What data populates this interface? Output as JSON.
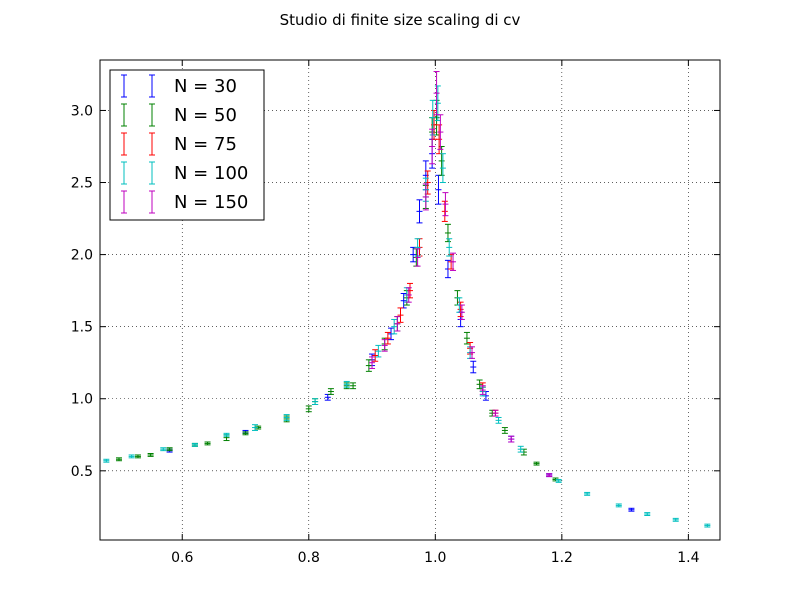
{
  "chart_data": {
    "type": "scatter",
    "title": "Studio di finite size scaling di cv",
    "xlabel": "",
    "ylabel": "",
    "xlim": [
      0.47,
      1.45
    ],
    "ylim": [
      0.02,
      3.35
    ],
    "x_ticks": [
      0.6,
      0.8,
      1.0,
      1.2,
      1.4
    ],
    "x_tick_labels": [
      "0.6",
      "0.8",
      "1.0",
      "1.2",
      "1.4"
    ],
    "y_ticks": [
      0.5,
      1.0,
      1.5,
      2.0,
      2.5,
      3.0
    ],
    "y_tick_labels": [
      "0.5",
      "1.0",
      "1.5",
      "2.0",
      "2.5",
      "3.0"
    ],
    "grid": true,
    "legend_position": "top-left",
    "series": [
      {
        "name": "N = 30",
        "color": "#0000ff",
        "points": [
          [
            0.58,
            0.64,
            0.01
          ],
          [
            0.7,
            0.77,
            0.01
          ],
          [
            0.83,
            1.01,
            0.02
          ],
          [
            0.9,
            1.27,
            0.04
          ],
          [
            0.93,
            1.45,
            0.04
          ],
          [
            0.95,
            1.68,
            0.05
          ],
          [
            0.965,
            2.0,
            0.05
          ],
          [
            0.975,
            2.3,
            0.08
          ],
          [
            0.985,
            2.55,
            0.1
          ],
          [
            0.995,
            2.7,
            0.1
          ],
          [
            1.005,
            2.45,
            0.1
          ],
          [
            1.02,
            1.9,
            0.06
          ],
          [
            1.04,
            1.55,
            0.05
          ],
          [
            1.06,
            1.22,
            0.04
          ],
          [
            1.08,
            1.02,
            0.03
          ],
          [
            1.12,
            0.72,
            0.02
          ],
          [
            1.18,
            0.47,
            0.01
          ],
          [
            1.31,
            0.23,
            0.01
          ]
        ]
      },
      {
        "name": "N = 50",
        "color": "#008000",
        "points": [
          [
            0.5,
            0.58,
            0.01
          ],
          [
            0.53,
            0.6,
            0.01
          ],
          [
            0.55,
            0.61,
            0.01
          ],
          [
            0.58,
            0.65,
            0.01
          ],
          [
            0.62,
            0.68,
            0.01
          ],
          [
            0.64,
            0.69,
            0.01
          ],
          [
            0.67,
            0.73,
            0.02
          ],
          [
            0.7,
            0.76,
            0.01
          ],
          [
            0.72,
            0.8,
            0.01
          ],
          [
            0.765,
            0.86,
            0.02
          ],
          [
            0.8,
            0.93,
            0.02
          ],
          [
            0.81,
            0.98,
            0.02
          ],
          [
            0.835,
            1.05,
            0.02
          ],
          [
            0.86,
            1.09,
            0.02
          ],
          [
            0.87,
            1.09,
            0.02
          ],
          [
            0.895,
            1.23,
            0.04
          ],
          [
            0.92,
            1.38,
            0.04
          ],
          [
            0.94,
            1.52,
            0.05
          ],
          [
            0.955,
            1.7,
            0.05
          ],
          [
            0.97,
            1.98,
            0.06
          ],
          [
            0.985,
            2.4,
            0.08
          ],
          [
            0.995,
            2.85,
            0.1
          ],
          [
            1.002,
            2.95,
            0.12
          ],
          [
            1.01,
            2.65,
            0.1
          ],
          [
            1.02,
            2.15,
            0.06
          ],
          [
            1.035,
            1.7,
            0.05
          ],
          [
            1.05,
            1.42,
            0.04
          ],
          [
            1.07,
            1.1,
            0.03
          ],
          [
            1.09,
            0.9,
            0.02
          ],
          [
            1.11,
            0.78,
            0.02
          ],
          [
            1.14,
            0.63,
            0.02
          ],
          [
            1.16,
            0.55,
            0.01
          ],
          [
            1.19,
            0.44,
            0.01
          ]
        ]
      },
      {
        "name": "N = 75",
        "color": "#ff0000",
        "points": [
          [
            0.905,
            1.3,
            0.04
          ],
          [
            0.925,
            1.42,
            0.04
          ],
          [
            0.945,
            1.58,
            0.05
          ],
          [
            0.96,
            1.75,
            0.05
          ],
          [
            0.975,
            2.05,
            0.06
          ],
          [
            0.988,
            2.5,
            0.08
          ],
          [
            0.998,
            2.9,
            0.1
          ],
          [
            1.006,
            2.8,
            0.1
          ],
          [
            1.015,
            2.3,
            0.07
          ],
          [
            1.025,
            1.95,
            0.05
          ],
          [
            1.04,
            1.62,
            0.05
          ],
          [
            1.055,
            1.35,
            0.04
          ],
          [
            1.075,
            1.08,
            0.03
          ],
          [
            1.095,
            0.9,
            0.02
          ]
        ]
      },
      {
        "name": "N = 100",
        "color": "#00bfbf",
        "points": [
          [
            0.48,
            0.57,
            0.01
          ],
          [
            0.52,
            0.6,
            0.01
          ],
          [
            0.57,
            0.65,
            0.01
          ],
          [
            0.62,
            0.68,
            0.01
          ],
          [
            0.67,
            0.75,
            0.01
          ],
          [
            0.715,
            0.8,
            0.02
          ],
          [
            0.765,
            0.87,
            0.02
          ],
          [
            0.81,
            0.98,
            0.02
          ],
          [
            0.86,
            1.1,
            0.02
          ],
          [
            0.91,
            1.33,
            0.04
          ],
          [
            0.935,
            1.5,
            0.05
          ],
          [
            0.955,
            1.72,
            0.05
          ],
          [
            0.972,
            2.05,
            0.06
          ],
          [
            0.985,
            2.45,
            0.08
          ],
          [
            0.996,
            2.95,
            0.12
          ],
          [
            1.004,
            3.05,
            0.12
          ],
          [
            1.012,
            2.6,
            0.1
          ],
          [
            1.022,
            2.05,
            0.06
          ],
          [
            1.038,
            1.65,
            0.05
          ],
          [
            1.055,
            1.32,
            0.04
          ],
          [
            1.075,
            1.05,
            0.03
          ],
          [
            1.1,
            0.85,
            0.02
          ],
          [
            1.135,
            0.65,
            0.02
          ],
          [
            1.195,
            0.43,
            0.01
          ],
          [
            1.24,
            0.34,
            0.01
          ],
          [
            1.29,
            0.26,
            0.01
          ],
          [
            1.335,
            0.2,
            0.01
          ],
          [
            1.38,
            0.16,
            0.01
          ],
          [
            1.43,
            0.12,
            0.01
          ]
        ]
      },
      {
        "name": "N = 150",
        "color": "#bf00bf",
        "points": [
          [
            0.9,
            1.25,
            0.04
          ],
          [
            0.92,
            1.37,
            0.04
          ],
          [
            0.94,
            1.52,
            0.05
          ],
          [
            0.958,
            1.72,
            0.05
          ],
          [
            0.972,
            1.98,
            0.06
          ],
          [
            0.985,
            2.4,
            0.09
          ],
          [
            0.995,
            2.75,
            0.12
          ],
          [
            1.002,
            3.12,
            0.15
          ],
          [
            1.008,
            2.85,
            0.12
          ],
          [
            1.016,
            2.35,
            0.08
          ],
          [
            1.028,
            1.95,
            0.06
          ],
          [
            1.042,
            1.6,
            0.05
          ],
          [
            1.058,
            1.32,
            0.04
          ],
          [
            1.075,
            1.06,
            0.03
          ],
          [
            1.095,
            0.9,
            0.02
          ],
          [
            1.12,
            0.72,
            0.02
          ],
          [
            1.18,
            0.47,
            0.01
          ]
        ]
      }
    ]
  }
}
